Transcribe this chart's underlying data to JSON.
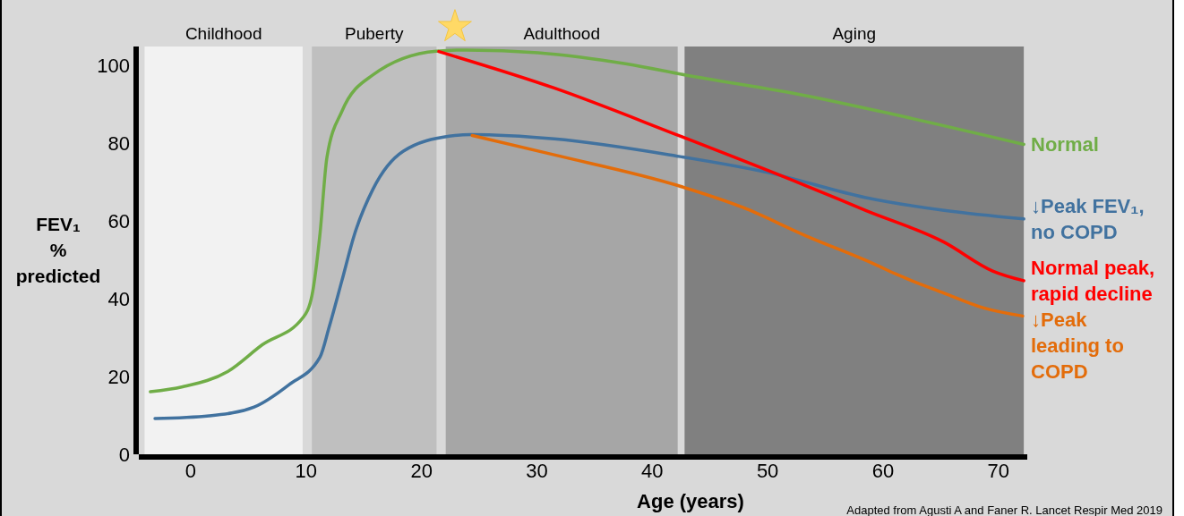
{
  "chart_data": {
    "type": "line",
    "xlabel": "Age (years)",
    "ylabel": "FEV₁\n%\npredicted",
    "xlim": [
      -4.5,
      72.5
    ],
    "ylim": [
      0,
      105
    ],
    "xticks": [
      0,
      10,
      20,
      30,
      40,
      50,
      60,
      70
    ],
    "yticks": [
      0,
      20,
      40,
      60,
      80,
      100
    ],
    "grid": false,
    "marker": "none",
    "line_style": "solid",
    "bands": [
      {
        "axis": "x",
        "from": -4.0,
        "to": 9.7,
        "label": "Childhood",
        "color": "#f2f2f2"
      },
      {
        "axis": "x",
        "from": 10.5,
        "to": 21.3,
        "label": "Puberty",
        "color": "#bfbfbf"
      },
      {
        "axis": "x",
        "from": 22.1,
        "to": 42.2,
        "label": "Adulthood",
        "color": "#a6a6a6"
      },
      {
        "axis": "x",
        "from": 42.8,
        "to": 72.2,
        "label": "Aging",
        "color": "#808080"
      }
    ],
    "series": [
      {
        "name": "Normal",
        "color": "#70ad47",
        "x": [
          -3.5,
          -0.7,
          3.2,
          6.2,
          9.7,
          10.5,
          11.2,
          11.8,
          13.1,
          15.8,
          21.3,
          23.9,
          30.1,
          37.8,
          42.8,
          53.2,
          60.8,
          72.2
        ],
        "values": [
          16.1,
          17.4,
          21.3,
          28.2,
          35.1,
          40.8,
          56.7,
          76.4,
          88.3,
          97.7,
          103.8,
          104.1,
          103.4,
          100.5,
          97.7,
          92.4,
          87.6,
          79.8
        ]
      },
      {
        "name": "↓Peak FEV₁,\nno COPD",
        "color": "#41729f",
        "x": [
          -3.1,
          1.6,
          5.5,
          8.5,
          11.2,
          12.0,
          13.1,
          14.2,
          15.8,
          18.4,
          22.4,
          24.3,
          31.5,
          42.1,
          50.1,
          58.5,
          65.3,
          72.2
        ],
        "values": [
          9.2,
          9.9,
          12.2,
          17.9,
          25.0,
          32.8,
          44.7,
          56.7,
          68.3,
          78.0,
          81.9,
          82.3,
          81.2,
          76.8,
          72.5,
          66.1,
          62.8,
          60.6
        ]
      },
      {
        "name": "Normal peak,\nrapid decline",
        "color": "#ff0000",
        "x": [
          21.5,
          31.5,
          42.1,
          53.2,
          58.5,
          65.3,
          69.5,
          72.2
        ],
        "values": [
          103.7,
          94.3,
          82.3,
          69.3,
          62.8,
          54.6,
          47.2,
          44.7
        ]
      },
      {
        "name": "↓Peak\nleading to\nCOPD",
        "color": "#e36c0a",
        "x": [
          24.4,
          31.5,
          42.1,
          47.9,
          53.2,
          59.3,
          61.2,
          65.3,
          68.6,
          72.1
        ],
        "values": [
          82.1,
          77.1,
          69.3,
          63.5,
          56.4,
          48.9,
          46.3,
          41.5,
          37.8,
          35.6
        ]
      }
    ],
    "annotations": [
      "Adapted from Agusti A and Faner R. Lancet Respir Med 2019"
    ]
  }
}
